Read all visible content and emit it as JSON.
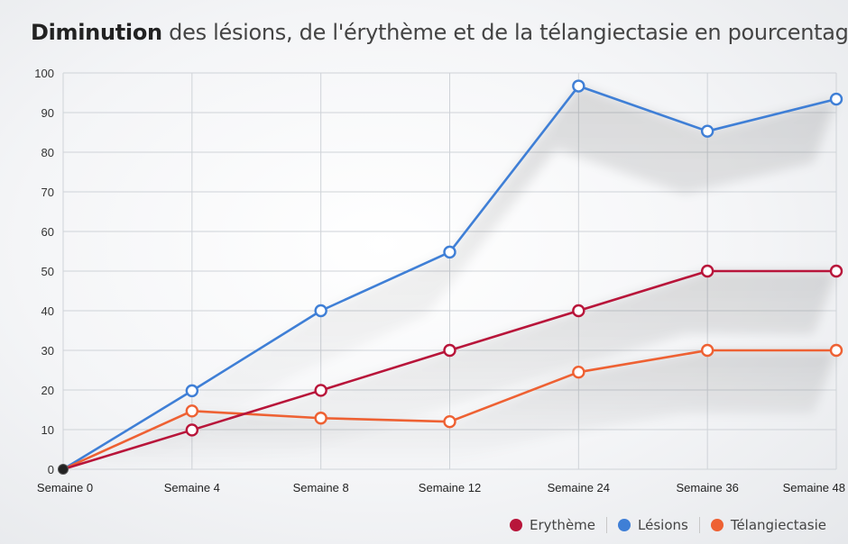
{
  "title": {
    "strong": "Diminution",
    "rest": " des lésions, de l'érythème et de la télangiectasie en pourcentage %"
  },
  "chart_data": {
    "type": "line",
    "title": "Diminution des lésions, de l'érythème et de la télangiectasie en pourcentage %",
    "categories": [
      "Semaine 0",
      "Semaine 4",
      "Semaine 8",
      "Semaine 12",
      "Semaine 24",
      "Semaine 36",
      "Semaine 48"
    ],
    "ylim": [
      0,
      100
    ],
    "yticks": [
      0,
      10,
      20,
      30,
      40,
      50,
      60,
      70,
      80,
      90,
      100
    ],
    "grid": true,
    "legend_position": "bottom-right",
    "series": [
      {
        "name": "Lésions",
        "color": "#3f7fd6",
        "values": [
          0,
          19.8,
          40,
          54.8,
          96.7,
          85.3,
          93.4
        ]
      },
      {
        "name": "Erythème",
        "color": "#b8153a",
        "values": [
          0,
          9.9,
          19.9,
          30,
          40,
          50,
          50
        ]
      },
      {
        "name": "Télangiectasie",
        "color": "#ee6133",
        "values": [
          0,
          14.7,
          12.9,
          12,
          24.5,
          30,
          30
        ]
      }
    ]
  },
  "legend": [
    {
      "label": "Erythème",
      "color": "#b8153a"
    },
    {
      "label": "Lésions",
      "color": "#3f7fd6"
    },
    {
      "label": "Télangiectasie",
      "color": "#ee6133"
    }
  ]
}
